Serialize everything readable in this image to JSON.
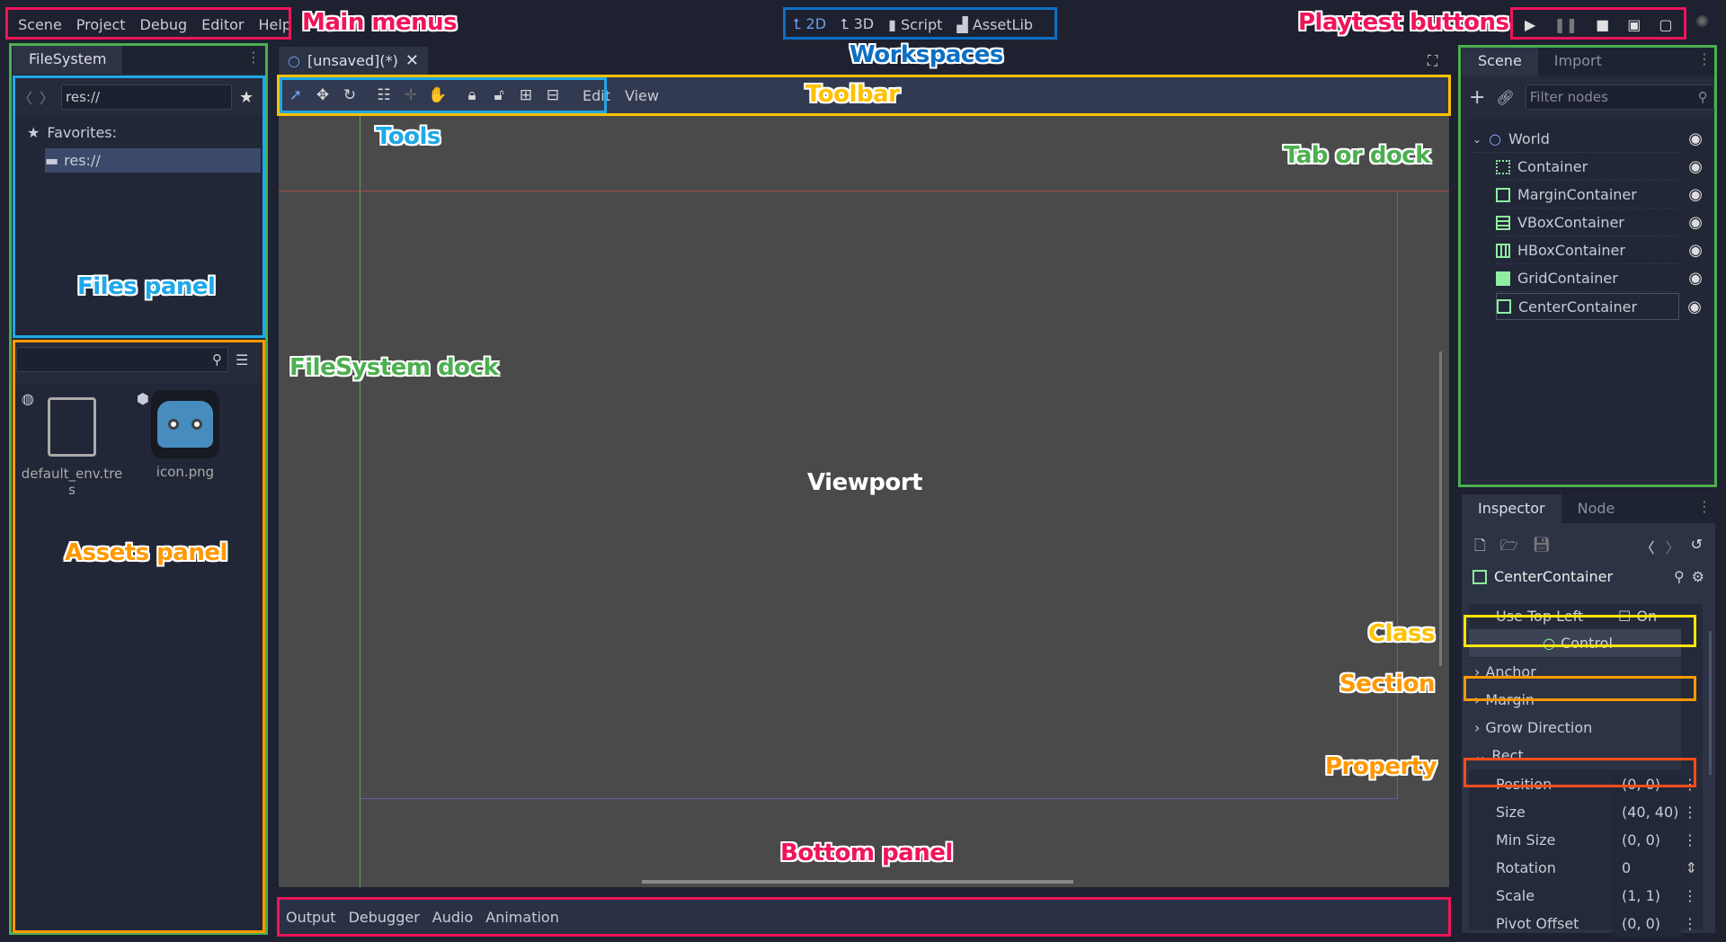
{
  "menus": [
    "Scene",
    "Project",
    "Debug",
    "Editor",
    "Help"
  ],
  "workspaces": [
    {
      "label": "2D",
      "icon": "2d-axes-icon",
      "active": true
    },
    {
      "label": "3D",
      "icon": "3d-axes-icon",
      "active": false
    },
    {
      "label": "Script",
      "icon": "script-icon",
      "active": false
    },
    {
      "label": "AssetLib",
      "icon": "assetlib-icon",
      "active": false
    }
  ],
  "playtest": [
    "play-icon",
    "pause-icon",
    "stop-icon",
    "play-scene-icon",
    "play-custom-scene-icon"
  ],
  "filesystem": {
    "tab": "FileSystem",
    "path": "res://",
    "favorites": "Favorites:",
    "root": "res://",
    "files": [
      {
        "name": "default_env.tres",
        "icon": "file-icon",
        "badge": "globe-icon"
      },
      {
        "name": "icon.png",
        "icon": "godot-icon",
        "badge": "cube-icon"
      }
    ]
  },
  "editor": {
    "scene_tab": "[unsaved](*)",
    "toolbar_menus": [
      "Edit",
      "View"
    ],
    "bottom_tabs": [
      "Output",
      "Debugger",
      "Audio",
      "Animation"
    ]
  },
  "scene_dock": {
    "tabs": [
      "Scene",
      "Import"
    ],
    "filter_placeholder": "Filter nodes",
    "nodes": [
      {
        "name": "World",
        "icon": "node2d-circle-icon"
      },
      {
        "name": "Container",
        "icon": "container-icon"
      },
      {
        "name": "MarginContainer",
        "icon": "margin-container-icon"
      },
      {
        "name": "VBoxContainer",
        "icon": "vbox-container-icon"
      },
      {
        "name": "HBoxContainer",
        "icon": "hbox-container-icon"
      },
      {
        "name": "GridContainer",
        "icon": "grid-container-icon"
      },
      {
        "name": "CenterContainer",
        "icon": "center-container-icon",
        "selected": true
      }
    ]
  },
  "inspector": {
    "tabs": [
      "Inspector",
      "Node"
    ],
    "object": "CenterContainer",
    "use_top_left": {
      "label": "Use Top Left",
      "value": "On",
      "checked": false
    },
    "class": "Control",
    "sections": [
      "Anchor",
      "Margin",
      "Grow Direction",
      "Rect"
    ],
    "properties": [
      {
        "name": "Position",
        "value": "(0, 0)"
      },
      {
        "name": "Size",
        "value": "(40, 40)"
      },
      {
        "name": "Min Size",
        "value": "(0, 0)"
      },
      {
        "name": "Rotation",
        "value": "0"
      },
      {
        "name": "Scale",
        "value": "(1, 1)"
      },
      {
        "name": "Pivot Offset",
        "value": "(0, 0)"
      }
    ]
  },
  "annotations": {
    "main_menus": "Main menus",
    "workspaces": "Workspaces",
    "playtest": "Playtest buttons",
    "toolbar": "Toolbar",
    "tools": "Tools",
    "tab_or_dock": "Tab or dock",
    "files_panel": "Files panel",
    "filesystem_dock": "FileSystem dock",
    "viewport": "Viewport",
    "assets_panel": "Assets panel",
    "class": "Class",
    "section": "Section",
    "property": "Property",
    "bottom_panel": "Bottom panel"
  },
  "colors": {
    "accent": "#6d9ee8",
    "node_green": "#8eeda0",
    "pink": "#f0145a",
    "yellow": "#ffd200",
    "orange": "#ff9900",
    "green": "#4caf50",
    "blue": "#1fa8e8"
  }
}
